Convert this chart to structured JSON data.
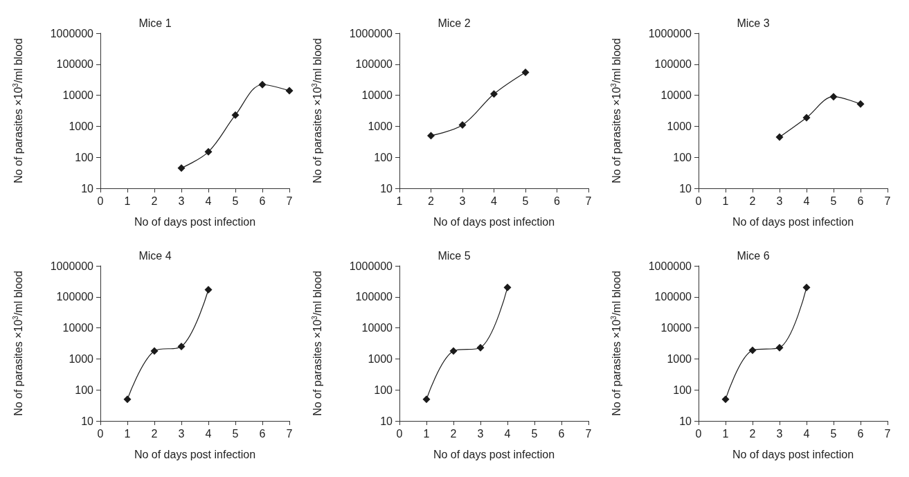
{
  "chart_data": [
    {
      "type": "line",
      "title": "Mice 1",
      "xlabel": "No of days post infection",
      "ylabel": "No of parasites ×10$^{3}$/ml blood",
      "x": [
        3,
        4,
        5,
        6,
        7
      ],
      "values": [
        45,
        150,
        2300,
        22000,
        14000
      ],
      "color": "#1a1a1a",
      "marker": "diamond",
      "line_style": "solid",
      "log": "y",
      "xlim": [
        0,
        7
      ],
      "xticks": [
        0,
        1,
        2,
        3,
        4,
        5,
        6,
        7
      ],
      "ylim": [
        10,
        1000000
      ],
      "yticks": [
        10,
        100,
        1000,
        10000,
        100000,
        1000000
      ]
    },
    {
      "type": "line",
      "title": "Mice 2",
      "xlabel": "No of days post infection",
      "ylabel": "No of parasites ×10$^{3}$/ml blood",
      "x": [
        2,
        3,
        4,
        5
      ],
      "values": [
        500,
        1100,
        11000,
        55000
      ],
      "color": "#1a1a1a",
      "marker": "diamond",
      "line_style": "solid",
      "log": "y",
      "xlim": [
        1,
        7
      ],
      "xticks": [
        1,
        2,
        3,
        4,
        5,
        6,
        7
      ],
      "ylim": [
        10,
        1000000
      ],
      "yticks": [
        10,
        100,
        1000,
        10000,
        100000,
        1000000
      ]
    },
    {
      "type": "line",
      "title": "Mice 3",
      "xlabel": "No of days post infection",
      "ylabel": "No of parasites ×10$^{3}$/ml blood",
      "x": [
        3,
        4,
        5,
        6
      ],
      "values": [
        450,
        1900,
        9000,
        5200
      ],
      "color": "#1a1a1a",
      "marker": "diamond",
      "line_style": "solid",
      "log": "y",
      "xlim": [
        0,
        7
      ],
      "xticks": [
        0,
        1,
        2,
        3,
        4,
        5,
        6,
        7
      ],
      "ylim": [
        10,
        1000000
      ],
      "yticks": [
        10,
        100,
        1000,
        10000,
        100000,
        1000000
      ]
    },
    {
      "type": "line",
      "title": "Mice 4",
      "xlabel": "No of days post infection",
      "ylabel": "No of parasites ×10$^{3}$/ml blood",
      "x": [
        1,
        2,
        3,
        4
      ],
      "values": [
        50,
        1800,
        2500,
        170000
      ],
      "color": "#1a1a1a",
      "marker": "diamond",
      "line_style": "solid",
      "log": "y",
      "xlim": [
        0,
        7
      ],
      "xticks": [
        0,
        1,
        2,
        3,
        4,
        5,
        6,
        7
      ],
      "ylim": [
        10,
        1000000
      ],
      "yticks": [
        10,
        100,
        1000,
        10000,
        100000,
        1000000
      ]
    },
    {
      "type": "line",
      "title": "Mice 5",
      "xlabel": "No of days post infection",
      "ylabel": "No of parasites ×10$^{3}$/ml blood",
      "x": [
        1,
        2,
        3,
        4
      ],
      "values": [
        50,
        1800,
        2300,
        200000
      ],
      "color": "#1a1a1a",
      "marker": "diamond",
      "line_style": "solid",
      "log": "y",
      "xlim": [
        0,
        7
      ],
      "xticks": [
        0,
        1,
        2,
        3,
        4,
        5,
        6,
        7
      ],
      "ylim": [
        10,
        1000000
      ],
      "yticks": [
        10,
        100,
        1000,
        10000,
        100000,
        1000000
      ]
    },
    {
      "type": "line",
      "title": "Mice 6",
      "xlabel": "No of days post infection",
      "ylabel": "No of parasites ×10$^{3}$/ml blood",
      "x": [
        1,
        2,
        3,
        4
      ],
      "values": [
        50,
        1900,
        2300,
        200000
      ],
      "color": "#1a1a1a",
      "marker": "diamond",
      "line_style": "solid",
      "log": "y",
      "xlim": [
        0,
        7
      ],
      "xticks": [
        0,
        1,
        2,
        3,
        4,
        5,
        6,
        7
      ],
      "ylim": [
        10,
        1000000
      ],
      "yticks": [
        10,
        100,
        1000,
        10000,
        100000,
        1000000
      ]
    }
  ]
}
